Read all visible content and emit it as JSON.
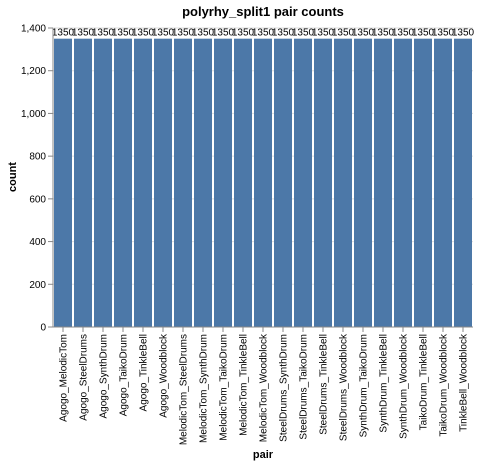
{
  "chart_data": {
    "type": "bar",
    "title": "polyrhy_split1 pair counts",
    "xlabel": "pair",
    "ylabel": "count",
    "categories": [
      "Agogo_MelodicTom",
      "Agogo_SteelDrums",
      "Agogo_SynthDrum",
      "Agogo_TaikoDrum",
      "Agogo_TinkleBell",
      "Agogo_Woodblock",
      "MelodicTom_SteelDrums",
      "MelodicTom_SynthDrum",
      "MelodicTom_TaikoDrum",
      "MelodicTom_TinkleBell",
      "MelodicTom_Woodblock",
      "SteelDrums_SynthDrum",
      "SteelDrums_TaikoDrum",
      "SteelDrums_TinkleBell",
      "SteelDrums_Woodblock",
      "SynthDrum_TaikoDrum",
      "SynthDrum_TinkleBell",
      "SynthDrum_Woodblock",
      "TaikoDrum_TinkleBell",
      "TaikoDrum_Woodblock",
      "TinkleBell_Woodblock"
    ],
    "values": [
      1350,
      1350,
      1350,
      1350,
      1350,
      1350,
      1350,
      1350,
      1350,
      1350,
      1350,
      1350,
      1350,
      1350,
      1350,
      1350,
      1350,
      1350,
      1350,
      1350,
      1350
    ],
    "data_labels": [
      "1350",
      "1350",
      "1350",
      "1350",
      "1350",
      "1350",
      "1350",
      "1350",
      "1350",
      "1350",
      "1350",
      "1350",
      "1350",
      "1350",
      "1350",
      "1350",
      "1350",
      "1350",
      "1350",
      "1350",
      "1350"
    ],
    "y_ticks": [
      0,
      200,
      400,
      600,
      800,
      1000,
      1200,
      1400
    ],
    "y_tick_labels": [
      "0",
      "200",
      "400",
      "600",
      "800",
      "1,000",
      "1,200",
      "1,400"
    ],
    "ylim": [
      0,
      1400
    ],
    "grid": true,
    "bar_color": "#4c78a8"
  }
}
